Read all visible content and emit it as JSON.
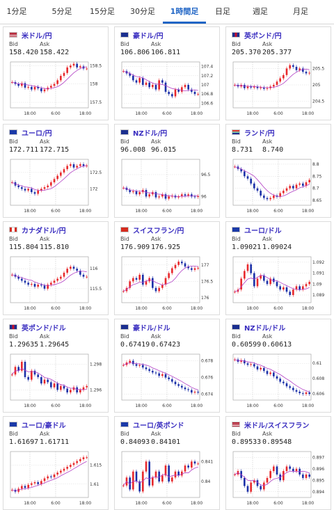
{
  "tabs": [
    {
      "label": "1分足",
      "active": false
    },
    {
      "label": "5分足",
      "active": false
    },
    {
      "label": "15分足",
      "active": false
    },
    {
      "label": "30分足",
      "active": false
    },
    {
      "label": "1時間足",
      "active": true
    },
    {
      "label": "日足",
      "active": false
    },
    {
      "label": "週足",
      "active": false
    },
    {
      "label": "月足",
      "active": false
    }
  ],
  "labels": {
    "bid": "Bid",
    "ask": "Ask"
  },
  "colors": {
    "up": "#e8282b",
    "down": "#1a2fa8",
    "ma": "#b23fc5",
    "accent": "#2166c6",
    "pair": "#3a2ec0"
  },
  "cards": [
    {
      "pair": "米ドル/円",
      "flag": "us",
      "bid": "158.420",
      "ask": "158.422",
      "y_ticks": [
        "158.5",
        "158",
        "157.5"
      ],
      "y_min": 157.35,
      "y_max": 158.6,
      "x_ticks": [
        "18:00",
        "6:00",
        "18:00"
      ],
      "close": [
        158.05,
        158.0,
        157.95,
        158.02,
        157.9,
        157.92,
        157.85,
        157.92,
        157.88,
        157.8,
        157.85,
        157.9,
        157.95,
        158.0,
        158.1,
        158.22,
        158.3,
        158.45,
        158.5,
        158.55,
        158.45,
        158.48,
        158.42,
        158.42
      ]
    },
    {
      "pair": "豪ドル/円",
      "flag": "au",
      "bid": "106.806",
      "ask": "106.811",
      "y_ticks": [
        "107.4",
        "107.2",
        "107",
        "106.8",
        "106.6"
      ],
      "y_min": 106.5,
      "y_max": 107.5,
      "x_ticks": [
        "18:00",
        "6:00",
        "18:00"
      ],
      "close": [
        107.3,
        107.25,
        107.2,
        107.1,
        107.05,
        107.15,
        107.0,
        107.05,
        106.95,
        107.0,
        106.9,
        107.1,
        107.05,
        106.85,
        106.8,
        106.75,
        106.9,
        106.85,
        106.95,
        107.0,
        106.9,
        106.85,
        106.8,
        106.8
      ]
    },
    {
      "pair": "英ポンド/円",
      "flag": "uk",
      "bid": "205.370",
      "ask": "205.377",
      "y_ticks": [
        "205.5",
        "205",
        "204.5"
      ],
      "y_min": 204.3,
      "y_max": 205.7,
      "x_ticks": [
        "18:00",
        "6:00",
        "18:00"
      ],
      "close": [
        205.0,
        204.95,
        205.0,
        204.9,
        204.95,
        204.92,
        204.95,
        204.9,
        204.92,
        204.88,
        204.9,
        204.95,
        205.0,
        205.1,
        205.2,
        205.3,
        205.5,
        205.6,
        205.55,
        205.45,
        205.5,
        205.4,
        205.35,
        205.37
      ]
    },
    {
      "pair": "ユーロ/円",
      "flag": "eu",
      "bid": "172.711",
      "ask": "172.715",
      "y_ticks": [
        "172.5",
        "172"
      ],
      "y_min": 171.5,
      "y_max": 172.9,
      "x_ticks": [
        "18:00",
        "6:00",
        "18:00"
      ],
      "close": [
        172.2,
        172.1,
        172.05,
        172.0,
        171.95,
        172.0,
        171.9,
        171.85,
        171.95,
        172.0,
        172.05,
        172.1,
        172.2,
        172.3,
        172.4,
        172.5,
        172.6,
        172.7,
        172.75,
        172.65,
        172.7,
        172.75,
        172.7,
        172.71
      ]
    },
    {
      "pair": "NZドル/円",
      "flag": "nz",
      "bid": "96.008",
      "ask": "96.015",
      "y_ticks": [
        "96.5",
        "96"
      ],
      "y_min": 95.8,
      "y_max": 96.85,
      "x_ticks": [
        "18:00",
        "6:00",
        "18:00"
      ],
      "close": [
        96.2,
        96.15,
        96.1,
        96.12,
        96.05,
        96.1,
        96.15,
        96.0,
        96.05,
        96.1,
        95.98,
        96.0,
        96.05,
        95.95,
        96.0,
        96.02,
        95.98,
        96.0,
        96.05,
        96.02,
        96.05,
        96.0,
        95.99,
        96.01
      ]
    },
    {
      "pair": "ランド/円",
      "flag": "za",
      "bid": "8.731",
      "ask": "8.740",
      "y_ticks": [
        "8.8",
        "8.75",
        "8.7",
        "8.65"
      ],
      "y_min": 8.63,
      "y_max": 8.82,
      "x_ticks": [
        "18:00",
        "6:00",
        "18:00"
      ],
      "close": [
        8.79,
        8.78,
        8.77,
        8.75,
        8.74,
        8.72,
        8.7,
        8.69,
        8.67,
        8.66,
        8.655,
        8.66,
        8.67,
        8.665,
        8.68,
        8.69,
        8.7,
        8.71,
        8.7,
        8.715,
        8.72,
        8.71,
        8.725,
        8.735
      ]
    },
    {
      "pair": "カナダドル/円",
      "flag": "ca",
      "bid": "115.804",
      "ask": "115.810",
      "y_ticks": [
        "116",
        "115.5"
      ],
      "y_min": 115.15,
      "y_max": 116.3,
      "x_ticks": [
        "18:00",
        "6:00",
        "18:00"
      ],
      "close": [
        115.85,
        115.8,
        115.75,
        115.7,
        115.65,
        115.6,
        115.62,
        115.55,
        115.6,
        115.58,
        115.5,
        115.6,
        115.65,
        115.7,
        115.75,
        115.8,
        115.9,
        116.0,
        116.05,
        116.0,
        115.95,
        115.85,
        115.8,
        115.8
      ]
    },
    {
      "pair": "スイスフラン/円",
      "flag": "ch",
      "bid": "176.909",
      "ask": "176.925",
      "y_ticks": [
        "177",
        "176.5",
        "176"
      ],
      "y_min": 175.85,
      "y_max": 177.25,
      "x_ticks": [
        "18:00",
        "6:00",
        "18:00"
      ],
      "close": [
        176.2,
        176.3,
        176.5,
        176.6,
        176.55,
        176.7,
        176.4,
        176.5,
        176.6,
        176.3,
        176.2,
        176.3,
        176.4,
        176.6,
        176.75,
        176.9,
        177.0,
        177.1,
        177.05,
        176.95,
        176.9,
        176.85,
        176.9,
        176.91
      ]
    },
    {
      "pair": "ユーロ/ドル",
      "flag": "eu",
      "bid": "1.09021",
      "ask": "1.09024",
      "y_ticks": [
        "1.092",
        "1.091",
        "1.09",
        "1.089"
      ],
      "y_min": 1.0883,
      "y_max": 1.0925,
      "x_ticks": [
        "18:00",
        "6:00",
        "18:00"
      ],
      "close": [
        1.0893,
        1.0895,
        1.0905,
        1.0912,
        1.0918,
        1.091,
        1.0898,
        1.0905,
        1.0908,
        1.0903,
        1.09,
        1.0905,
        1.0902,
        1.0898,
        1.0895,
        1.0897,
        1.0893,
        1.089,
        1.0895,
        1.0898,
        1.0895,
        1.0898,
        1.09,
        1.0902
      ]
    },
    {
      "pair": "英ポンド/ドル",
      "flag": "uk",
      "bid": "1.29635",
      "ask": "1.29645",
      "y_ticks": [
        "1.298",
        "1.296"
      ],
      "y_min": 1.2952,
      "y_max": 1.2988,
      "x_ticks": [
        "18:00",
        "6:00",
        "18:00"
      ],
      "close": [
        1.2972,
        1.2978,
        1.2975,
        1.2982,
        1.297,
        1.2968,
        1.2975,
        1.2972,
        1.297,
        1.2965,
        1.2968,
        1.2966,
        1.2962,
        1.2965,
        1.296,
        1.2963,
        1.2961,
        1.2958,
        1.296,
        1.2962,
        1.2958,
        1.296,
        1.2962,
        1.2963
      ]
    },
    {
      "pair": "豪ドル/ドル",
      "flag": "au",
      "bid": "0.67419",
      "ask": "0.67423",
      "y_ticks": [
        "0.678",
        "0.676",
        "0.674"
      ],
      "y_min": 0.6733,
      "y_max": 0.6788,
      "x_ticks": [
        "18:00",
        "6:00",
        "18:00"
      ],
      "close": [
        0.6775,
        0.6778,
        0.678,
        0.6776,
        0.6774,
        0.6775,
        0.6772,
        0.677,
        0.6768,
        0.6766,
        0.6765,
        0.6762,
        0.6764,
        0.676,
        0.6758,
        0.6755,
        0.6752,
        0.675,
        0.6748,
        0.6746,
        0.6745,
        0.6742,
        0.6743,
        0.6742
      ]
    },
    {
      "pair": "NZドル/ドル",
      "flag": "nz",
      "bid": "0.60599",
      "ask": "0.60613",
      "y_ticks": [
        "0.61",
        "0.608",
        "0.606"
      ],
      "y_min": 0.6052,
      "y_max": 0.6112,
      "x_ticks": [
        "18:00",
        "6:00",
        "18:00"
      ],
      "close": [
        0.6105,
        0.6102,
        0.6104,
        0.61,
        0.6098,
        0.6099,
        0.6096,
        0.6092,
        0.6094,
        0.609,
        0.6086,
        0.6088,
        0.6083,
        0.608,
        0.6076,
        0.6074,
        0.607,
        0.6068,
        0.6065,
        0.6063,
        0.6061,
        0.606,
        0.6062,
        0.606
      ]
    },
    {
      "pair": "ユーロ/豪ドル",
      "flag": "eu",
      "bid": "1.61697",
      "ask": "1.61711",
      "y_ticks": [
        "1.615",
        "1.61"
      ],
      "y_min": 1.6065,
      "y_max": 1.6185,
      "x_ticks": [
        "18:00",
        "6:00",
        "18:00"
      ],
      "close": [
        1.6085,
        1.608,
        1.6088,
        1.6095,
        1.609,
        1.6098,
        1.6102,
        1.6105,
        1.61,
        1.6108,
        1.6115,
        1.612,
        1.6118,
        1.6125,
        1.613,
        1.6135,
        1.614,
        1.6145,
        1.615,
        1.6155,
        1.616,
        1.6165,
        1.617,
        1.617
      ]
    },
    {
      "pair": "ユーロ/英ポンド",
      "flag": "eu",
      "bid": "0.84093",
      "ask": "0.84101",
      "y_ticks": [
        "0.841",
        "0.84"
      ],
      "y_min": 0.8392,
      "y_max": 0.8415,
      "x_ticks": [
        "18:00",
        "6:00",
        "18:00"
      ],
      "close": [
        0.8398,
        0.8402,
        0.8396,
        0.8405,
        0.84,
        0.8395,
        0.8405,
        0.841,
        0.8398,
        0.8402,
        0.8405,
        0.84,
        0.8403,
        0.8408,
        0.84,
        0.8402,
        0.8405,
        0.8403,
        0.8405,
        0.8408,
        0.8407,
        0.841,
        0.8409,
        0.8409
      ]
    },
    {
      "pair": "米ドル/スイスフラン",
      "flag": "us",
      "bid": "0.89533",
      "ask": "0.89548",
      "y_ticks": [
        "0.897",
        "0.896",
        "0.895",
        "0.894"
      ],
      "y_min": 0.8935,
      "y_max": 0.8975,
      "x_ticks": [
        "18:00",
        "6:00",
        "18:00"
      ],
      "close": [
        0.8955,
        0.8958,
        0.8952,
        0.8945,
        0.894,
        0.8948,
        0.895,
        0.8945,
        0.8942,
        0.8948,
        0.8952,
        0.8958,
        0.8962,
        0.8955,
        0.895,
        0.8958,
        0.8962,
        0.896,
        0.8958,
        0.896,
        0.8955,
        0.8952,
        0.8955,
        0.8953
      ]
    }
  ]
}
